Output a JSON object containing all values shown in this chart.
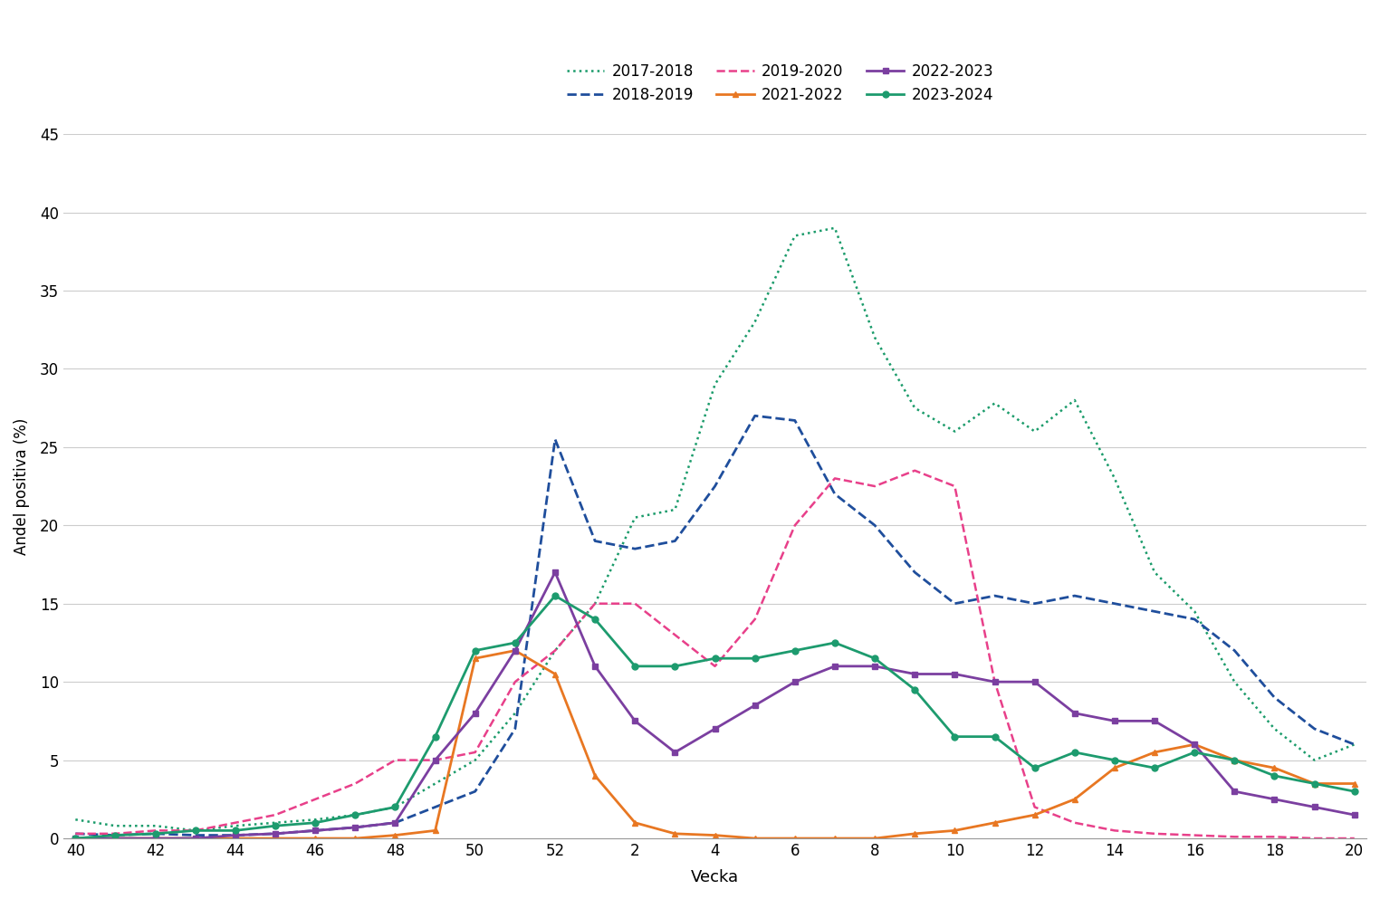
{
  "xlabel": "Vecka",
  "ylabel": "Andel positiva (%)",
  "ylim": [
    0,
    45
  ],
  "yticks": [
    0,
    5,
    10,
    15,
    20,
    25,
    30,
    35,
    40,
    45
  ],
  "x_labels": [
    40,
    42,
    44,
    46,
    48,
    50,
    52,
    2,
    4,
    6,
    8,
    10,
    12,
    14,
    16,
    18,
    20
  ],
  "background_color": "#ffffff",
  "grid_color": "#cccccc",
  "series": [
    {
      "label": "2017-2018",
      "color": "#1a9b6a",
      "linestyle": "dotted",
      "linewidth": 1.8,
      "marker": null,
      "x": [
        40,
        41,
        42,
        43,
        44,
        45,
        46,
        47,
        48,
        49,
        50,
        51,
        52,
        1,
        2,
        3,
        4,
        5,
        6,
        7,
        8,
        9,
        10,
        11,
        12,
        13,
        14,
        15,
        16,
        17,
        18,
        19,
        20
      ],
      "y": [
        1.2,
        0.8,
        0.8,
        0.5,
        0.8,
        1.0,
        1.2,
        1.5,
        2.0,
        3.5,
        5.0,
        8.0,
        12.0,
        15.0,
        20.5,
        21.0,
        29.0,
        33.0,
        38.5,
        39.0,
        32.0,
        27.5,
        26.0,
        27.8,
        26.0,
        28.0,
        23.0,
        17.0,
        14.5,
        10.0,
        7.0,
        5.0,
        6.0
      ]
    },
    {
      "label": "2018-2019",
      "color": "#1f4e9c",
      "linestyle": "dashed",
      "linewidth": 2.0,
      "marker": null,
      "x": [
        40,
        41,
        42,
        43,
        44,
        45,
        46,
        47,
        48,
        49,
        50,
        51,
        52,
        1,
        2,
        3,
        4,
        5,
        6,
        7,
        8,
        9,
        10,
        11,
        12,
        13,
        14,
        15,
        16,
        17,
        18,
        19,
        20
      ],
      "y": [
        0.3,
        0.2,
        0.3,
        0.2,
        0.2,
        0.3,
        0.5,
        0.7,
        1.0,
        2.0,
        3.0,
        7.0,
        25.5,
        19.0,
        18.5,
        19.0,
        22.5,
        27.0,
        26.7,
        22.0,
        20.0,
        17.0,
        15.0,
        15.5,
        15.0,
        15.5,
        15.0,
        14.5,
        14.0,
        12.0,
        9.0,
        7.0,
        6.0
      ]
    },
    {
      "label": "2019-2020",
      "color": "#e8408a",
      "linestyle": "dashed",
      "linewidth": 1.8,
      "marker": null,
      "x": [
        40,
        41,
        42,
        43,
        44,
        45,
        46,
        47,
        48,
        49,
        50,
        51,
        52,
        1,
        2,
        3,
        4,
        5,
        6,
        7,
        8,
        9,
        10,
        11,
        12,
        13,
        14,
        15,
        16,
        17,
        18,
        19,
        20
      ],
      "y": [
        0.3,
        0.3,
        0.5,
        0.5,
        1.0,
        1.5,
        2.5,
        3.5,
        5.0,
        5.0,
        5.5,
        10.0,
        12.0,
        15.0,
        15.0,
        13.0,
        11.0,
        14.0,
        20.0,
        23.0,
        22.5,
        23.5,
        22.5,
        10.0,
        2.0,
        1.0,
        0.5,
        0.3,
        0.2,
        0.1,
        0.1,
        0.0,
        0.0
      ]
    },
    {
      "label": "2021-2022",
      "color": "#e87722",
      "linestyle": "solid",
      "linewidth": 2.0,
      "marker": "^",
      "markersize": 5,
      "x": [
        40,
        41,
        42,
        43,
        44,
        45,
        46,
        47,
        48,
        49,
        50,
        51,
        52,
        1,
        2,
        3,
        4,
        5,
        6,
        7,
        8,
        9,
        10,
        11,
        12,
        13,
        14,
        15,
        16,
        17,
        18,
        19,
        20
      ],
      "y": [
        0.0,
        0.0,
        0.0,
        0.0,
        0.0,
        0.0,
        0.0,
        0.0,
        0.2,
        0.5,
        11.5,
        12.0,
        10.5,
        4.0,
        1.0,
        0.3,
        0.2,
        0.0,
        0.0,
        0.0,
        0.0,
        0.3,
        0.5,
        1.0,
        1.5,
        2.5,
        4.5,
        5.5,
        6.0,
        5.0,
        4.5,
        3.5,
        3.5
      ]
    },
    {
      "label": "2022-2023",
      "color": "#7b3fa0",
      "linestyle": "solid",
      "linewidth": 2.0,
      "marker": "s",
      "markersize": 5,
      "x": [
        40,
        41,
        42,
        43,
        44,
        45,
        46,
        47,
        48,
        49,
        50,
        51,
        52,
        1,
        2,
        3,
        4,
        5,
        6,
        7,
        8,
        9,
        10,
        11,
        12,
        13,
        14,
        15,
        16,
        17,
        18,
        19,
        20
      ],
      "y": [
        0.0,
        0.0,
        0.0,
        0.0,
        0.2,
        0.3,
        0.5,
        0.7,
        1.0,
        5.0,
        8.0,
        12.0,
        17.0,
        11.0,
        7.5,
        5.5,
        7.0,
        8.5,
        10.0,
        11.0,
        11.0,
        10.5,
        10.5,
        10.0,
        10.0,
        8.0,
        7.5,
        7.5,
        6.0,
        3.0,
        2.5,
        2.0,
        1.5
      ]
    },
    {
      "label": "2023-2024",
      "color": "#1d9b6e",
      "linestyle": "solid",
      "linewidth": 2.0,
      "marker": "o",
      "markersize": 5,
      "x": [
        40,
        41,
        42,
        43,
        44,
        45,
        46,
        47,
        48,
        49,
        50,
        51,
        52,
        1,
        2,
        3,
        4,
        5,
        6,
        7,
        8,
        9,
        10,
        11,
        12,
        13,
        14,
        15,
        16,
        17,
        18,
        19,
        20
      ],
      "y": [
        0.0,
        0.2,
        0.3,
        0.5,
        0.5,
        0.8,
        1.0,
        1.5,
        2.0,
        6.5,
        12.0,
        12.5,
        15.5,
        14.0,
        11.0,
        11.0,
        11.5,
        11.5,
        12.0,
        12.5,
        11.5,
        9.5,
        6.5,
        6.5,
        4.5,
        5.5,
        5.0,
        4.5,
        5.5,
        5.0,
        4.0,
        3.5,
        3.0
      ]
    }
  ]
}
